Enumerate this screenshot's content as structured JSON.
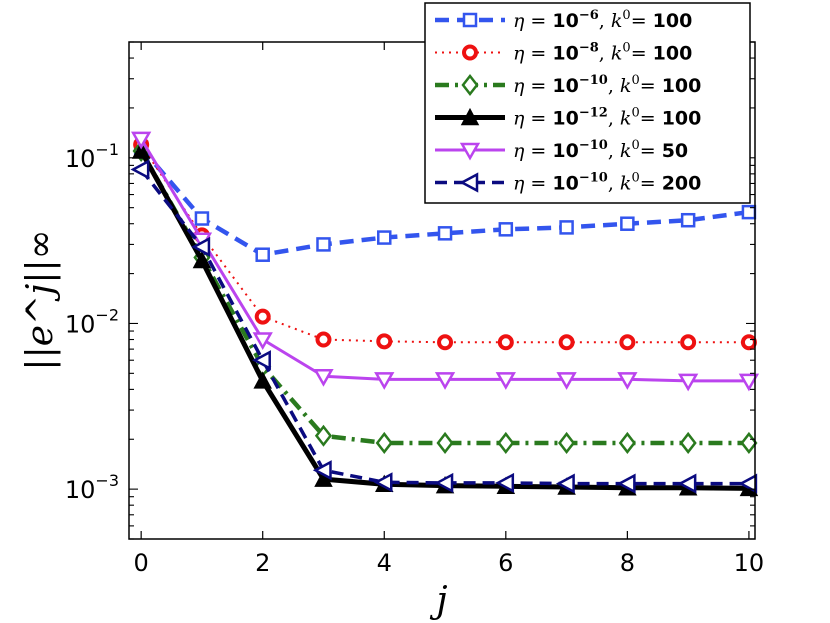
{
  "chart_data": {
    "type": "line",
    "title": "",
    "xlabel": "j",
    "ylabel": "||e^j||∞",
    "yscale": "log",
    "xlim": [
      -0.2,
      10.1
    ],
    "ylim": [
      0.0005,
      0.5
    ],
    "x_ticks": [
      "0",
      "2",
      "4",
      "6",
      "8",
      "10"
    ],
    "y_ticks": [
      {
        "base": "10",
        "exp": "-1",
        "value": 0.1
      },
      {
        "base": "10",
        "exp": "-2",
        "value": 0.01
      },
      {
        "base": "10",
        "exp": "-3",
        "value": 0.001
      }
    ],
    "x": [
      0,
      1,
      2,
      3,
      4,
      5,
      6,
      7,
      8,
      9,
      10
    ],
    "series": [
      {
        "name": "η = 10^-6, k^0 = 100",
        "eta_exp": "−6",
        "k0": "100",
        "color": "#3355ee",
        "dash": "14,8",
        "width": 4.5,
        "marker": "square",
        "values": [
          0.115,
          0.043,
          0.026,
          0.03,
          0.033,
          0.035,
          0.037,
          0.038,
          0.04,
          0.042,
          0.047
        ]
      },
      {
        "name": "η = 10^-8, k^0 = 100",
        "eta_exp": "−8",
        "k0": "100",
        "color": "#ee1111",
        "dash": "2,5",
        "width": 2,
        "marker": "circle",
        "values": [
          0.12,
          0.034,
          0.011,
          0.008,
          0.0078,
          0.0077,
          0.0077,
          0.0077,
          0.0077,
          0.0077,
          0.0077
        ]
      },
      {
        "name": "η = 10^-10, k^0 = 100",
        "eta_exp": "−10",
        "k0": "100",
        "color": "#2a7a1e",
        "dash": "14,6,3,6",
        "width": 4.5,
        "marker": "diamond",
        "values": [
          0.11,
          0.025,
          0.0055,
          0.0021,
          0.0019,
          0.0019,
          0.0019,
          0.0019,
          0.0019,
          0.0019,
          0.0019
        ]
      },
      {
        "name": "η = 10^-12, k^0 = 100",
        "eta_exp": "−12",
        "k0": "100",
        "color": "#000000",
        "dash": "",
        "width": 5,
        "marker": "triangle-up",
        "values": [
          0.11,
          0.024,
          0.0045,
          0.00115,
          0.00107,
          0.00105,
          0.00104,
          0.00103,
          0.00102,
          0.00102,
          0.00101
        ]
      },
      {
        "name": "η = 10^-10, k^0 = 50",
        "eta_exp": "−10",
        "k0": "50",
        "color": "#bb44ee",
        "dash": "",
        "width": 3,
        "marker": "triangle-down",
        "values": [
          0.13,
          0.032,
          0.008,
          0.0048,
          0.0046,
          0.0046,
          0.0046,
          0.0046,
          0.0046,
          0.0045,
          0.0045
        ]
      },
      {
        "name": "η = 10^-10, k^0 = 200",
        "eta_exp": "−10",
        "k0": "200",
        "color": "#0b0b80",
        "dash": "12,7",
        "width": 3.5,
        "marker": "triangle-left",
        "values": [
          0.085,
          0.029,
          0.006,
          0.0013,
          0.0011,
          0.00109,
          0.00109,
          0.00108,
          0.00108,
          0.00108,
          0.00108
        ]
      }
    ],
    "legend": "top-right",
    "grid": false
  }
}
